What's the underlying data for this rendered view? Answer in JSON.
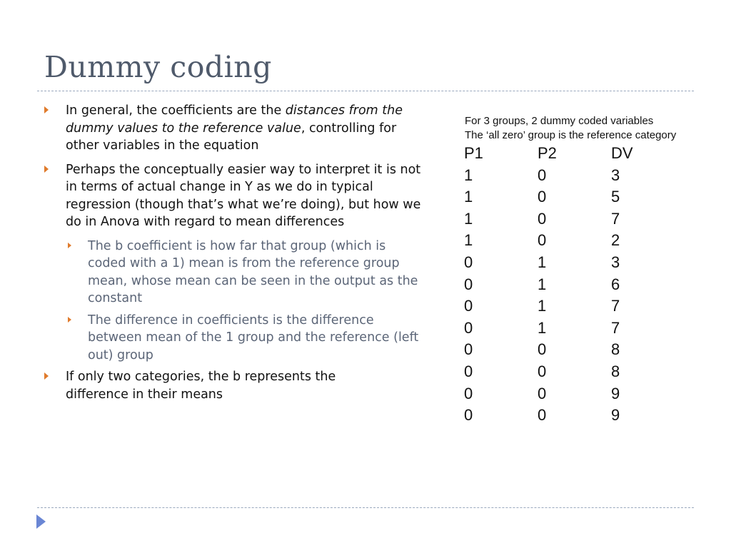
{
  "slide": {
    "title": "Dummy coding",
    "bullets": [
      {
        "pre": "In general, the coefficients are the ",
        "em": "distances from the dummy values to the reference value",
        "post": ", controlling for other variables in the equation"
      },
      {
        "text": "Perhaps the conceptually easier way to interpret it is not in terms of actual change in Y as we do in typical regression (though that’s what we’re doing), but how we do in Anova with regard to mean differences"
      },
      {
        "text": "The b coefficient is how far that group (which is coded with a 1) mean is from the reference group mean, whose mean can be seen in the output as the constant"
      },
      {
        "text": "The difference in coefficients is the difference between mean of the 1 group and the reference (left out) group"
      },
      {
        "text": "If only two categories, the b represents the difference in their means"
      }
    ],
    "caption": [
      "For 3 groups, 2 dummy coded variables",
      "The ‘all zero’ group is the reference category"
    ],
    "table": {
      "headers": [
        "P1",
        "P2",
        "DV"
      ],
      "rows": [
        [
          "1",
          "0",
          "3"
        ],
        [
          "1",
          "0",
          "5"
        ],
        [
          "1",
          "0",
          "7"
        ],
        [
          "1",
          "0",
          "2"
        ],
        [
          "0",
          "1",
          "3"
        ],
        [
          "0",
          "1",
          "6"
        ],
        [
          "0",
          "1",
          "7"
        ],
        [
          "0",
          "1",
          "7"
        ],
        [
          "0",
          "0",
          "8"
        ],
        [
          "0",
          "0",
          "8"
        ],
        [
          "0",
          "0",
          "9"
        ],
        [
          "0",
          "0",
          "9"
        ]
      ]
    },
    "colors": {
      "title": "#4f5a6b",
      "bullet_arrow": "#e07b2c",
      "sub_text": "#5b6577",
      "nav_arrow": "#6a86d4"
    }
  }
}
